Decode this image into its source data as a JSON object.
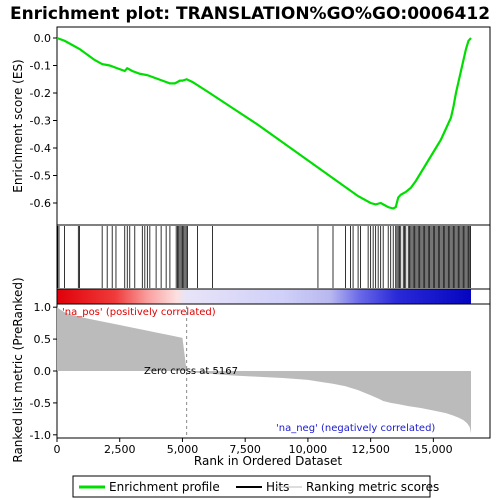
{
  "chart_data": {
    "type": "line",
    "title": "Enrichment plot: TRANSLATION%GO%GO:0006412",
    "n_genes": 16500,
    "enrichment_panel": {
      "ylabel": "Enrichment score (ES)",
      "ylim": [
        -0.68,
        0.04
      ],
      "yticks": [
        0.0,
        -0.1,
        -0.2,
        -0.3,
        -0.4,
        -0.5,
        -0.6
      ],
      "ytick_labels": [
        "0.0",
        "-0.1",
        "-0.2",
        "-0.3",
        "-0.4",
        "-0.5",
        "-0.6"
      ],
      "line_color": "#00dd00",
      "series": [
        {
          "name": "Enrichment profile",
          "x": [
            0,
            300,
            600,
            900,
            1200,
            1500,
            1800,
            2100,
            2400,
            2700,
            2800,
            3000,
            3300,
            3600,
            3900,
            4200,
            4500,
            4700,
            4800,
            4900,
            5000,
            5167,
            5400,
            6000,
            7000,
            8000,
            9000,
            10000,
            11000,
            12000,
            12500,
            12700,
            12900,
            13000,
            13200,
            13400,
            13500,
            13600,
            13700,
            13900,
            14100,
            14300,
            14500,
            14700,
            14900,
            15100,
            15300,
            15500,
            15700,
            15800,
            15900,
            16000,
            16100,
            16200,
            16300,
            16400,
            16500
          ],
          "y": [
            0.0,
            -0.01,
            -0.025,
            -0.04,
            -0.06,
            -0.08,
            -0.095,
            -0.1,
            -0.11,
            -0.12,
            -0.11,
            -0.12,
            -0.13,
            -0.135,
            -0.145,
            -0.155,
            -0.165,
            -0.165,
            -0.16,
            -0.155,
            -0.155,
            -0.15,
            -0.16,
            -0.195,
            -0.255,
            -0.315,
            -0.38,
            -0.445,
            -0.51,
            -0.575,
            -0.6,
            -0.605,
            -0.6,
            -0.605,
            -0.615,
            -0.62,
            -0.615,
            -0.58,
            -0.57,
            -0.56,
            -0.545,
            -0.52,
            -0.49,
            -0.46,
            -0.43,
            -0.4,
            -0.37,
            -0.33,
            -0.29,
            -0.25,
            -0.2,
            -0.16,
            -0.12,
            -0.08,
            -0.04,
            -0.01,
            0.0
          ]
        }
      ]
    },
    "hits": {
      "name": "Hits",
      "positions": [
        30,
        80,
        300,
        850,
        900,
        1800,
        2000,
        2200,
        2350,
        2700,
        2800,
        2900,
        3100,
        3400,
        3500,
        3600,
        3700,
        3950,
        4150,
        4350,
        4500,
        4750,
        4800,
        4850,
        4900,
        4950,
        5000,
        5050,
        5100,
        5150,
        5200,
        5600,
        6200,
        10400,
        11000,
        11500,
        11700,
        11800,
        12000,
        12100,
        12400,
        12500,
        12600,
        12700,
        12800,
        12900,
        13000,
        13200,
        13300,
        13400,
        13500,
        13550,
        13600,
        13650,
        13700,
        13800,
        13850,
        13900,
        14000,
        14050,
        14100,
        14150,
        14200,
        14250,
        14300,
        14350,
        14400,
        14450,
        14500,
        14550,
        14600,
        14650,
        14700,
        14750,
        14800,
        14850,
        14900,
        14950,
        15000,
        15050,
        15100,
        15150,
        15200,
        15250,
        15300,
        15350,
        15400,
        15450,
        15500,
        15550,
        15600,
        15650,
        15700,
        15750,
        15800,
        15850,
        15900,
        15950,
        16000,
        16050,
        16100,
        16150,
        16200,
        16250,
        16300,
        16350,
        16400,
        16450,
        16480
      ]
    },
    "ranking_panel": {
      "ylabel": "Ranked list metric (PreRanked)",
      "ylim": [
        -1.05,
        1.05
      ],
      "yticks": [
        1.0,
        0.5,
        0.0,
        -0.5,
        -1.0
      ],
      "ytick_labels": [
        "1.0",
        "0.5",
        "0.0",
        "-0.5",
        "-1.0"
      ],
      "metric_x": [
        0,
        100,
        300,
        600,
        1000,
        1500,
        2000,
        2500,
        3000,
        3500,
        4000,
        4500,
        5000,
        5167,
        5300,
        6000,
        7000,
        8000,
        9000,
        10000,
        10500,
        11000,
        11500,
        12000,
        12500,
        12800,
        13000,
        13300,
        13600,
        14000,
        14500,
        15000,
        15500,
        15800,
        16000,
        16200,
        16350,
        16450,
        16500
      ],
      "metric_y": [
        1.0,
        0.97,
        0.92,
        0.88,
        0.84,
        0.8,
        0.76,
        0.72,
        0.68,
        0.64,
        0.6,
        0.56,
        0.52,
        0.0,
        -0.02,
        -0.04,
        -0.07,
        -0.09,
        -0.11,
        -0.14,
        -0.17,
        -0.2,
        -0.24,
        -0.3,
        -0.38,
        -0.43,
        -0.47,
        -0.5,
        -0.52,
        -0.55,
        -0.58,
        -0.62,
        -0.66,
        -0.7,
        -0.73,
        -0.77,
        -0.82,
        -0.88,
        -0.98
      ]
    },
    "xaxis": {
      "xlabel": "Rank in Ordered Dataset",
      "xticks": [
        0,
        2500,
        5000,
        7500,
        10000,
        12500,
        15000
      ],
      "xtick_labels": [
        "0",
        "2,500",
        "5,000",
        "7,500",
        "10,000",
        "12,500",
        "15,000"
      ]
    },
    "annotations": {
      "pos_label": "'na_pos' (positively correlated)",
      "neg_label": "'na_neg' (negatively correlated)",
      "zero_label": "Zero cross at 5167",
      "zero_cross": 5167
    },
    "legend": {
      "placement": "bottom",
      "items": [
        {
          "name": "Enrichment profile",
          "color": "#00dd00"
        },
        {
          "name": "Hits",
          "color": "#000000"
        },
        {
          "name": "Ranking metric scores",
          "color": "#bbbbbb"
        }
      ]
    }
  }
}
